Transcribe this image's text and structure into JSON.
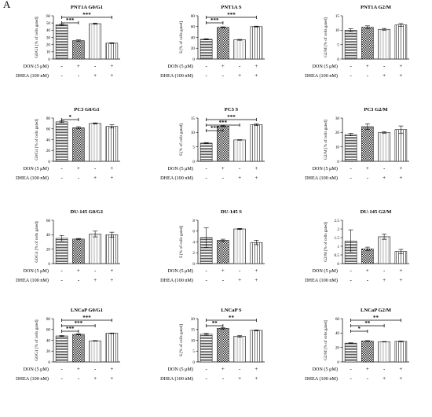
{
  "figure": {
    "panel_label": "A",
    "conditions": [
      {
        "label": "DON (5 μM)",
        "signs": [
          "-",
          "+",
          "-",
          "+"
        ]
      },
      {
        "label": "DHEA (100 nM)",
        "signs": [
          "-",
          "-",
          "+",
          "+"
        ]
      }
    ]
  },
  "chart_data": [
    {
      "type": "bar",
      "title": "PNT1A G0/G1",
      "ylabel": "G0/G1 [% of cells gated]",
      "ylim": [
        0,
        60
      ],
      "yticks": [
        0,
        10,
        20,
        30,
        40,
        50,
        60
      ],
      "values": [
        47.5,
        25.5,
        49,
        22
      ],
      "errors": [
        0.8,
        1,
        0.8,
        0.5
      ],
      "significance": [
        {
          "from": 0,
          "to": 1,
          "label": "***"
        },
        {
          "from": 0,
          "to": 3,
          "label": "***"
        }
      ]
    },
    {
      "type": "bar",
      "title": "PNT1A S",
      "ylabel": "S [% of cells gated]",
      "ylim": [
        0,
        80
      ],
      "yticks": [
        0,
        20,
        40,
        60,
        80
      ],
      "values": [
        36.5,
        58.5,
        35.5,
        60
      ],
      "errors": [
        1,
        1,
        0.8,
        0.8
      ],
      "significance": [
        {
          "from": 0,
          "to": 1,
          "label": "***"
        },
        {
          "from": 0,
          "to": 3,
          "label": "***"
        }
      ]
    },
    {
      "type": "bar",
      "title": "PNT1A G2/M",
      "ylabel": "G2/M [% of cells gated]",
      "ylim": [
        0,
        15
      ],
      "yticks": [
        0,
        5,
        10,
        15
      ],
      "values": [
        10,
        11,
        10.3,
        11.8
      ],
      "errors": [
        0.5,
        0.5,
        0.3,
        0.5
      ],
      "significance": []
    },
    {
      "type": "bar",
      "title": "PC3 G0/G1",
      "ylabel": "G0/G1 [% of cells gated]",
      "ylim": [
        0,
        80
      ],
      "yticks": [
        0,
        20,
        40,
        60,
        80
      ],
      "values": [
        73,
        62,
        70,
        64.5
      ],
      "errors": [
        1.5,
        2,
        1,
        3
      ],
      "significance": [
        {
          "from": 0,
          "to": 1,
          "label": "*"
        }
      ]
    },
    {
      "type": "bar",
      "title": "PC3 S",
      "ylabel": "S [% of cells gated]",
      "ylim": [
        0,
        15
      ],
      "yticks": [
        0,
        5,
        10,
        15
      ],
      "values": [
        6.3,
        12.2,
        7.4,
        12.7
      ],
      "errors": [
        0.2,
        0.2,
        0.1,
        0.3
      ],
      "significance": [
        {
          "from": 0,
          "to": 1,
          "label": "***"
        },
        {
          "from": 0,
          "to": 2,
          "label": "***"
        },
        {
          "from": 0,
          "to": 3,
          "label": "***"
        }
      ]
    },
    {
      "type": "bar",
      "title": "PC3 G2/M",
      "ylabel": "G2/M [% of cells gated]",
      "ylim": [
        0,
        30
      ],
      "yticks": [
        0,
        10,
        20,
        30
      ],
      "values": [
        18.5,
        24,
        20,
        22
      ],
      "errors": [
        0.8,
        2,
        0.5,
        2.5
      ],
      "significance": []
    },
    {
      "type": "bar",
      "title": "DU-145 G0/G1",
      "ylabel": "G0/G1 [% of cells gated]",
      "ylim": [
        0,
        60
      ],
      "yticks": [
        0,
        20,
        40,
        60
      ],
      "values": [
        35,
        34,
        41,
        40
      ],
      "errors": [
        4,
        0.8,
        4,
        3.5
      ],
      "significance": []
    },
    {
      "type": "bar",
      "title": "DU-145 S",
      "ylabel": "S [% of cells gated]",
      "ylim": [
        0,
        8
      ],
      "yticks": [
        0,
        2,
        4,
        6,
        8
      ],
      "values": [
        4.8,
        4.3,
        6.4,
        3.9
      ],
      "errors": [
        1.8,
        0.2,
        0.1,
        0.4
      ],
      "significance": []
    },
    {
      "type": "bar",
      "title": "DU-145 G2/M",
      "ylabel": "G2/M [% of cells gated]",
      "ylim": [
        0,
        2.5
      ],
      "yticks": [
        0,
        0.5,
        1.0,
        1.5,
        2.0,
        2.5
      ],
      "values": [
        1.3,
        0.85,
        1.55,
        0.7
      ],
      "errors": [
        0.65,
        0.1,
        0.15,
        0.12
      ],
      "significance": []
    },
    {
      "type": "bar",
      "title": "LNCaP G0/G1",
      "ylabel": "G0/G1 [% of cells gated]",
      "ylim": [
        0,
        80
      ],
      "yticks": [
        0,
        20,
        40,
        60,
        80
      ],
      "values": [
        48,
        51,
        39,
        53
      ],
      "errors": [
        0.8,
        1,
        0.5,
        0.5
      ],
      "significance": [
        {
          "from": 0,
          "to": 1,
          "label": "***"
        },
        {
          "from": 0,
          "to": 2,
          "label": "***"
        },
        {
          "from": 0,
          "to": 3,
          "label": "***"
        }
      ]
    },
    {
      "type": "bar",
      "title": "LNCaP S",
      "ylabel": "S [% of cells gated]",
      "ylim": [
        0,
        20
      ],
      "yticks": [
        0,
        5,
        10,
        15,
        20
      ],
      "values": [
        12.8,
        15.5,
        11.8,
        14.6
      ],
      "errors": [
        0.4,
        0.3,
        0.4,
        0.2
      ],
      "significance": [
        {
          "from": 0,
          "to": 1,
          "label": "**"
        },
        {
          "from": 0,
          "to": 3,
          "label": "**"
        }
      ]
    },
    {
      "type": "bar",
      "title": "LNCaP G2/M",
      "ylabel": "G2/M [% of cells gated]",
      "ylim": [
        0,
        60
      ],
      "yticks": [
        0,
        20,
        40,
        60
      ],
      "values": [
        26,
        29,
        28,
        28.5
      ],
      "errors": [
        0.5,
        0.5,
        0.3,
        0.5
      ],
      "significance": [
        {
          "from": 0,
          "to": 1,
          "label": "*"
        },
        {
          "from": 0,
          "to": 2,
          "label": "**"
        },
        {
          "from": 0,
          "to": 3,
          "label": "**"
        }
      ]
    }
  ]
}
